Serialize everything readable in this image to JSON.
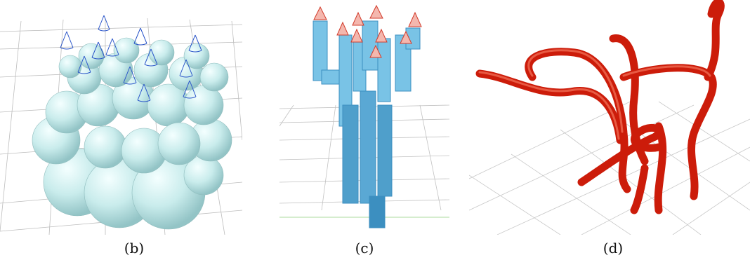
{
  "panels": [
    {
      "id": "b",
      "caption": "(b)",
      "colors": {
        "grid": "#b9b9b9",
        "body": "#c9ecec",
        "body_shade": "#9fcfd1",
        "cone": "#2a55c9"
      }
    },
    {
      "id": "c",
      "caption": "(c)",
      "colors": {
        "grid": "#bdbdbd",
        "body": "#79c3e6",
        "body_shade": "#3c8fc0",
        "cone": "#d23b2b",
        "axis": "#8fcf7b"
      }
    },
    {
      "id": "d",
      "caption": "(d)",
      "colors": {
        "grid": "#c4c4c4",
        "tube": "#cc1c0a",
        "tube_highlight": "#f06a52"
      }
    }
  ]
}
